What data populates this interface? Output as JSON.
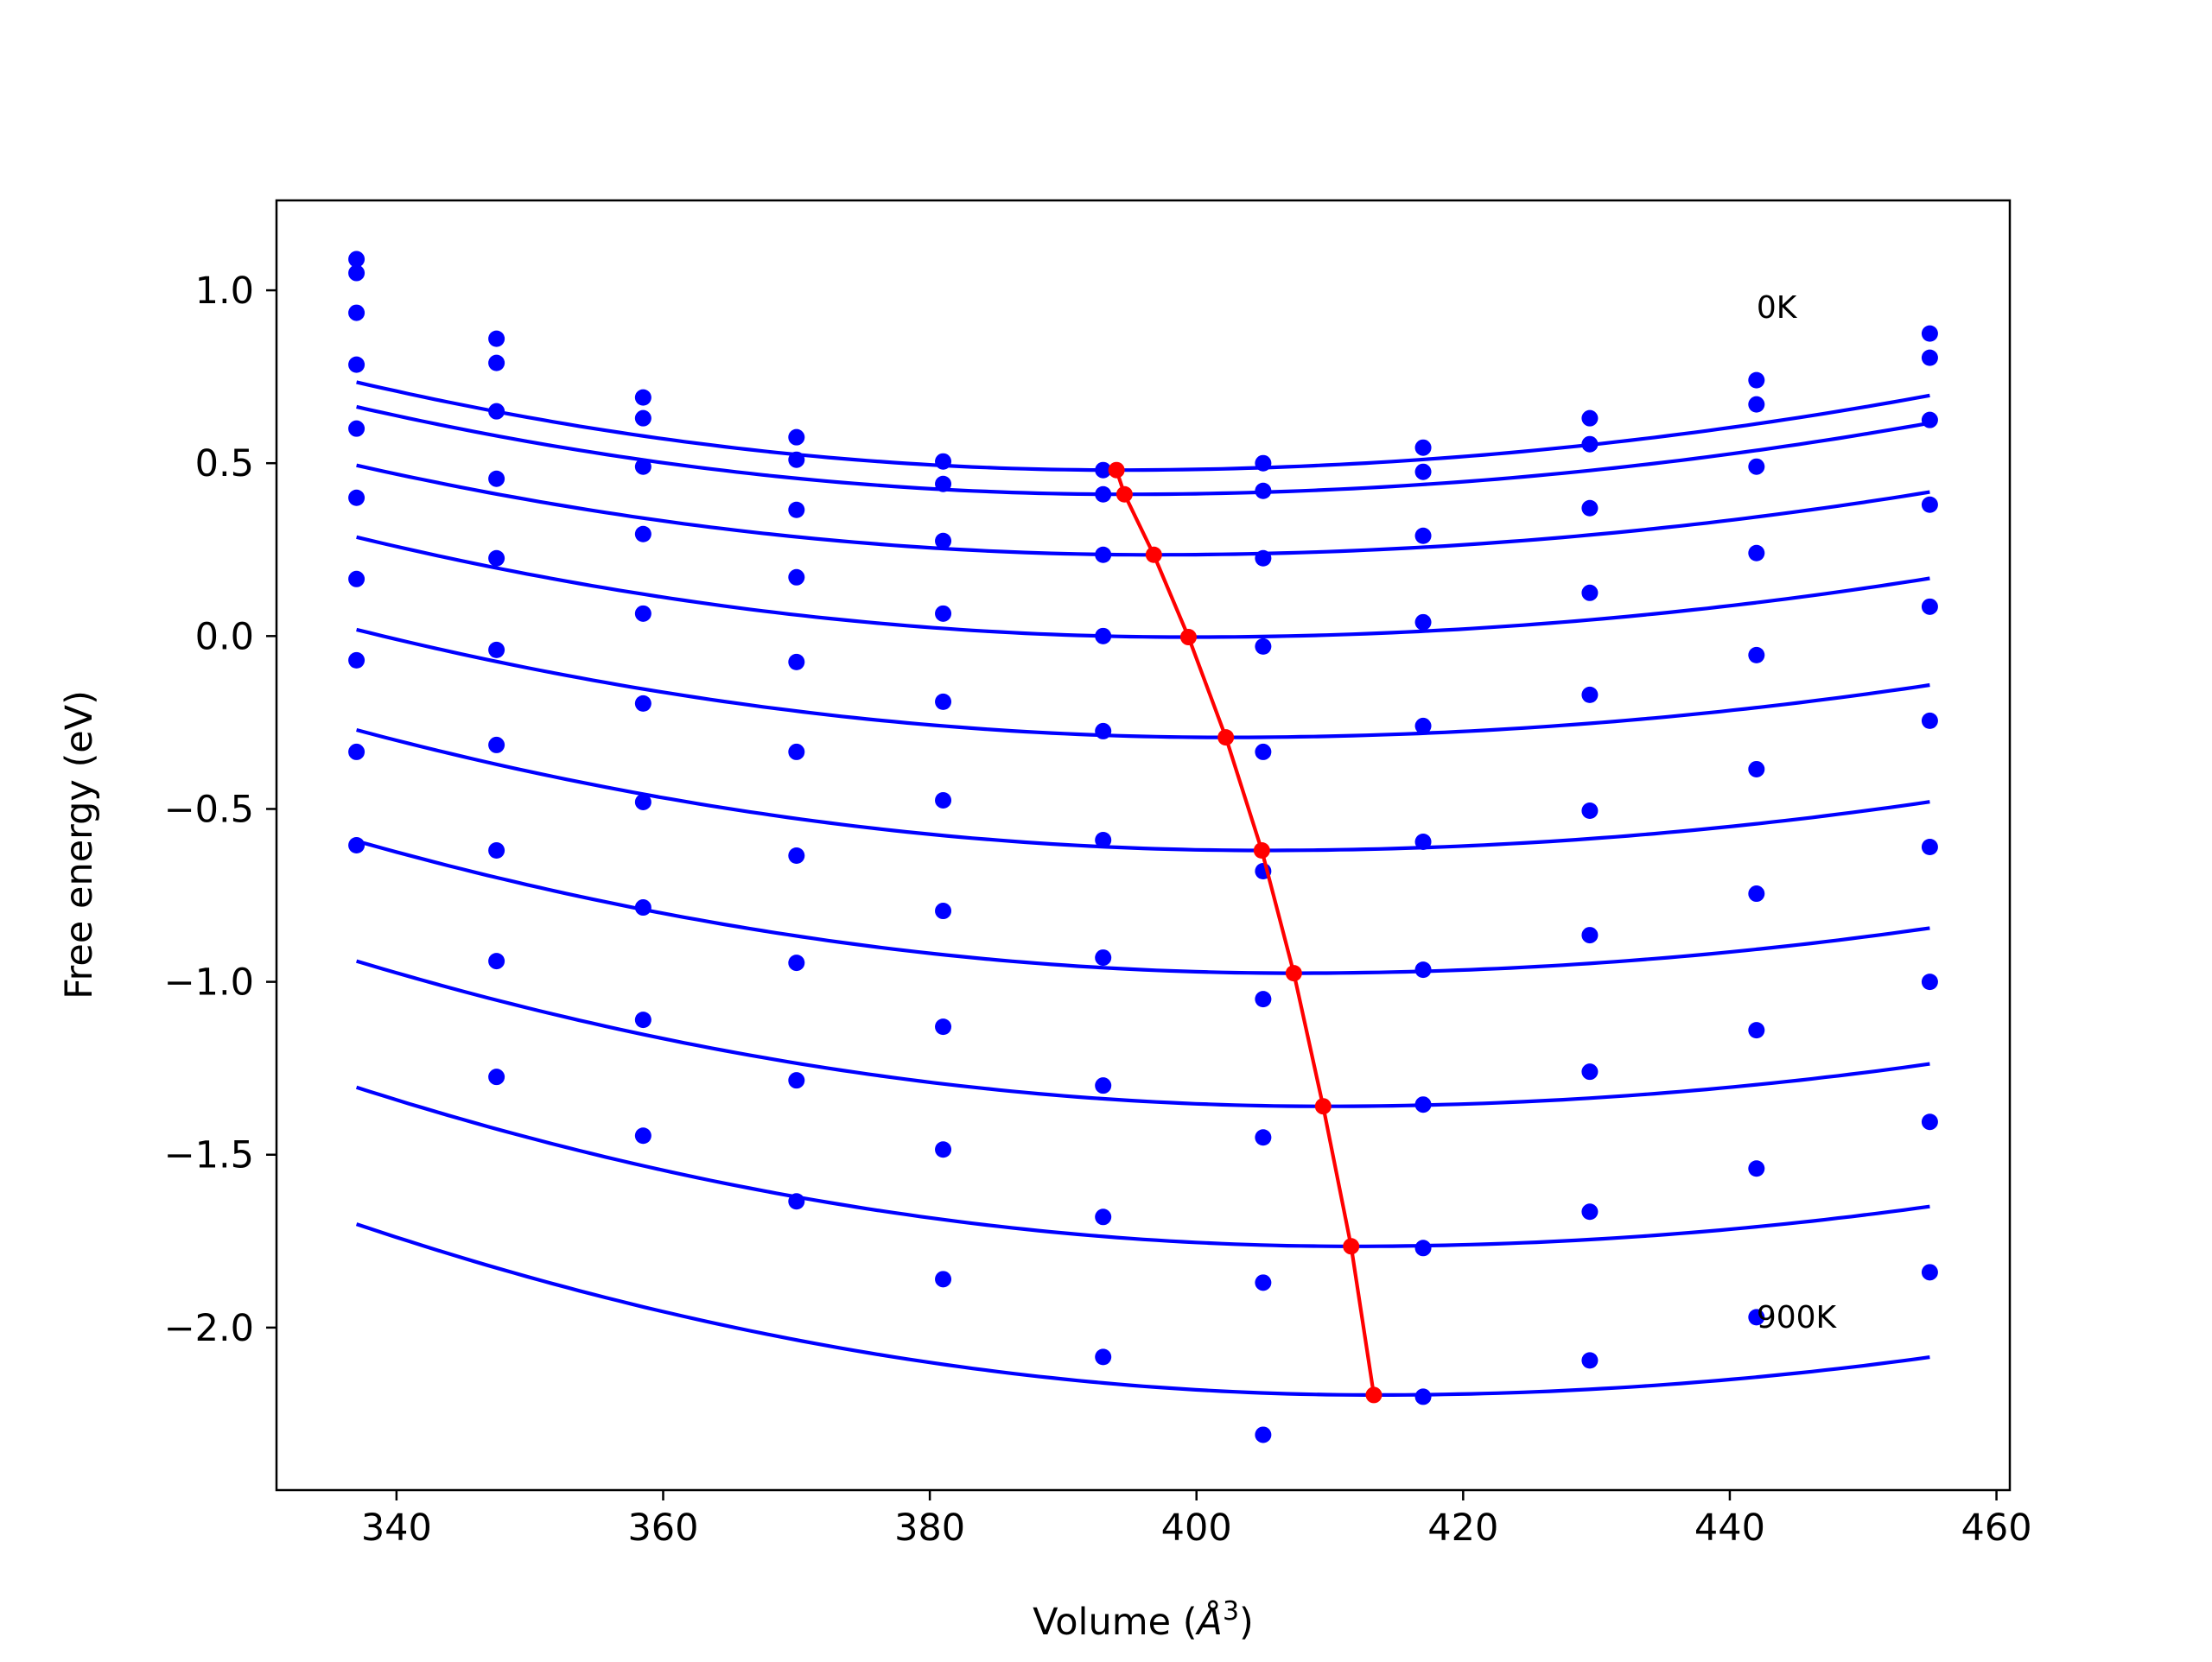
{
  "chart_data": {
    "type": "line",
    "xlabel": "Volume (Å³)",
    "xlabel_text": "Volume (",
    "xlabel_symbol": "Å",
    "xlabel_sup": "3",
    "xlabel_close": ")",
    "ylabel": "Free energy (eV)",
    "xlim": [
      331,
      461
    ],
    "ylim": [
      -2.47,
      1.26
    ],
    "xticks": [
      340,
      360,
      380,
      400,
      420,
      440,
      460
    ],
    "xtick_labels": [
      "340",
      "360",
      "380",
      "400",
      "420",
      "440",
      "460"
    ],
    "yticks": [
      1.0,
      0.5,
      0.0,
      -0.5,
      -1.0,
      -1.5,
      -2.0
    ],
    "ytick_labels": [
      "1.0",
      "0.5",
      "0.0",
      "−0.5",
      "−1.0",
      "−1.5",
      "−2.0"
    ],
    "grid": false,
    "annotations": [
      {
        "text": "0K",
        "x": 442,
        "y": 0.92
      },
      {
        "text": "900K",
        "x": 442,
        "y": -2.0
      }
    ],
    "colors": {
      "series": "#0000ff",
      "minimum_path": "#ff0000",
      "axes": "#000000"
    },
    "x": [
      337,
      347.5,
      358.5,
      370,
      381,
      393,
      405,
      417,
      429.5,
      442,
      455
    ],
    "series": [
      {
        "values": [
          1.09,
          0.86,
          0.69,
          0.575,
          0.505,
          0.48,
          0.5,
          0.545,
          0.63,
          0.74,
          0.875
        ],
        "fit": {
          "vmin": 394,
          "emin": 0.48,
          "a": 5.8e-05
        }
      },
      {
        "values": [
          1.05,
          0.79,
          0.63,
          0.51,
          0.44,
          0.41,
          0.42,
          0.475,
          0.555,
          0.67,
          0.805
        ],
        "fit": {
          "vmin": 394.6,
          "emin": 0.41,
          "a": 5.65e-05
        }
      },
      {
        "values": [
          0.935,
          0.65,
          0.49,
          0.365,
          0.275,
          0.235,
          0.225,
          0.29,
          0.37,
          0.49,
          0.625
        ],
        "fit": {
          "vmin": 396.8,
          "emin": 0.235,
          "a": 5.36e-05
        }
      },
      {
        "values": [
          0.785,
          0.455,
          0.295,
          0.17,
          0.065,
          0.0,
          -0.03,
          0.04,
          0.125,
          0.24,
          0.38
        ],
        "fit": {
          "vmin": 399.4,
          "emin": -0.003,
          "a": 5.5e-05
        }
      },
      {
        "values": [
          0.6,
          0.225,
          0.065,
          -0.075,
          -0.19,
          -0.275,
          -0.335,
          -0.26,
          -0.17,
          -0.055,
          0.085
        ],
        "fit": {
          "vmin": 402.2,
          "emin": -0.293,
          "a": 5.43e-05
        }
      },
      {
        "values": [
          0.4,
          -0.04,
          -0.195,
          -0.335,
          -0.475,
          -0.59,
          -0.68,
          -0.595,
          -0.505,
          -0.385,
          -0.245
        ],
        "fit": {
          "vmin": 404.9,
          "emin": -0.62,
          "a": 5.6e-05
        }
      },
      {
        "values": [
          0.165,
          -0.315,
          -0.48,
          -0.635,
          -0.795,
          -0.93,
          -1.05,
          -0.965,
          -0.865,
          -0.745,
          -0.61
        ],
        "fit": {
          "vmin": 407.3,
          "emin": -0.975,
          "a": 5.73e-05
        }
      },
      {
        "values": [
          -0.07,
          -0.62,
          -0.785,
          -0.945,
          -1.13,
          -1.3,
          -1.45,
          -1.355,
          -1.26,
          -1.14,
          -1.0
        ],
        "fit": {
          "vmin": 409.5,
          "emin": -1.36,
          "a": 5.92e-05
        }
      },
      {
        "values": [
          -0.335,
          -0.94,
          -1.11,
          -1.285,
          -1.485,
          -1.68,
          -1.87,
          -1.77,
          -1.665,
          -1.54,
          -1.405
        ],
        "fit": {
          "vmin": 411.6,
          "emin": -1.765,
          "a": 6.12e-05
        }
      },
      {
        "values": [
          -0.605,
          -1.275,
          -1.445,
          -1.635,
          -1.86,
          -2.085,
          -2.31,
          -2.2,
          -2.095,
          -1.97,
          -1.84
        ],
        "fit": {
          "vmin": 413.3,
          "emin": -2.195,
          "a": 6.29e-05
        }
      }
    ],
    "minimum_path": {
      "x": [
        394,
        394.6,
        396.8,
        399.4,
        402.2,
        404.9,
        407.3,
        409.5,
        411.6,
        413.3
      ],
      "y": [
        0.48,
        0.41,
        0.235,
        -0.003,
        -0.293,
        -0.62,
        -0.975,
        -1.36,
        -1.765,
        -2.195
      ]
    }
  }
}
